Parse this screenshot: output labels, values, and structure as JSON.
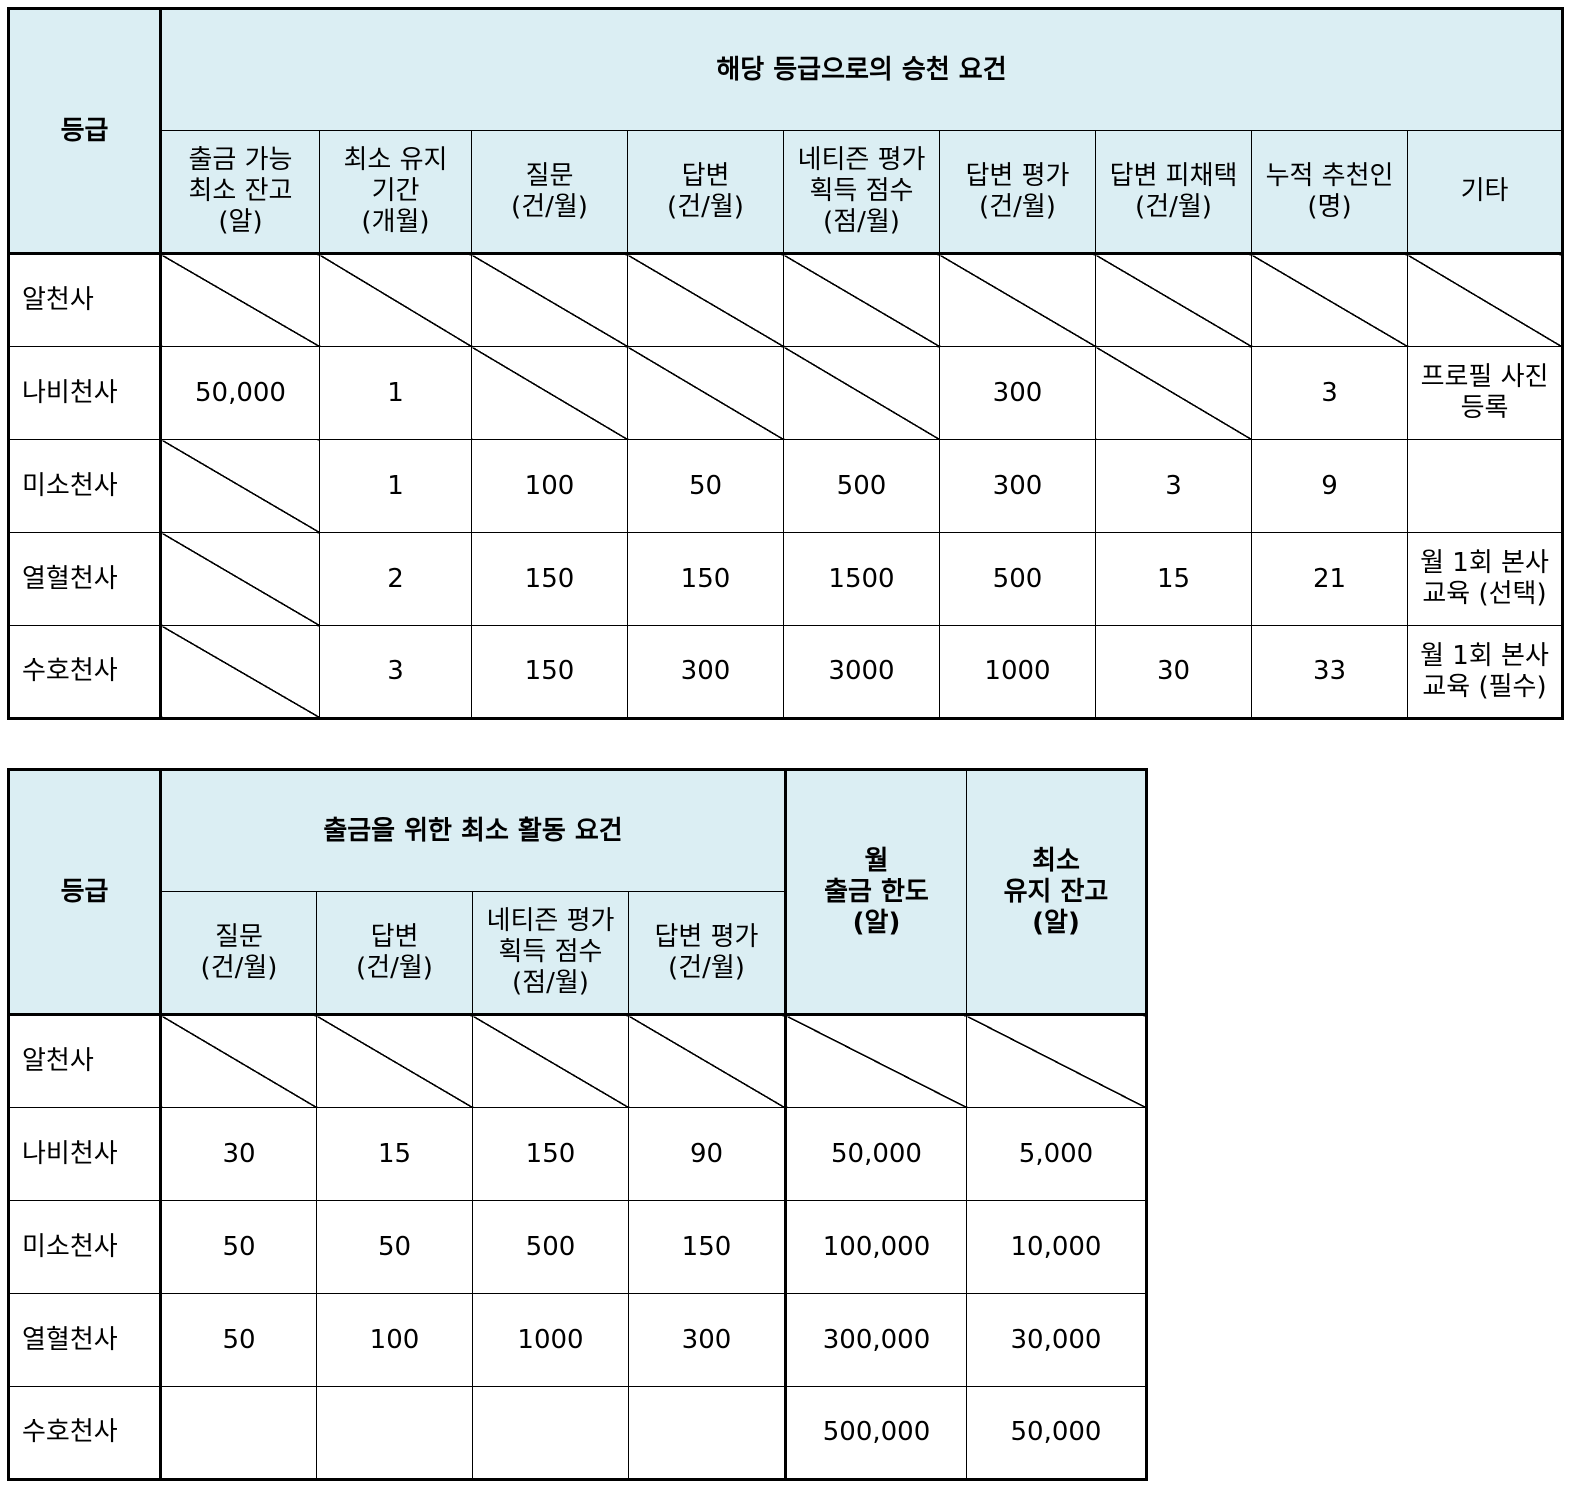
{
  "table1": {
    "grade_header": "등급",
    "group_header": "해당 등급으로의 승천 요건",
    "columns": [
      "출금 가능\n최소 잔고\n(알)",
      "최소 유지\n기간\n(개월)",
      "질문\n(건/월)",
      "답변\n(건/월)",
      "네티즌 평가\n획득 점수\n(점/월)",
      "답변 평가\n(건/월)",
      "답변 피채택\n(건/월)",
      "누적 추천인\n(명)",
      "기타"
    ],
    "rows": [
      {
        "grade": "알천사",
        "cells": [
          "",
          "",
          "",
          "",
          "",
          "",
          "",
          "",
          ""
        ]
      },
      {
        "grade": "나비천사",
        "cells": [
          "50,000",
          "1",
          "",
          "",
          "",
          "300",
          "",
          "3",
          "프로필 사진\n등록"
        ]
      },
      {
        "grade": "미소천사",
        "cells": [
          "",
          "1",
          "100",
          "50",
          "500",
          "300",
          "3",
          "9",
          ""
        ]
      },
      {
        "grade": "열혈천사",
        "cells": [
          "",
          "2",
          "150",
          "150",
          "1500",
          "500",
          "15",
          "21",
          "월 1회 본사\n교육 (선택)"
        ]
      },
      {
        "grade": "수호천사",
        "cells": [
          "",
          "3",
          "150",
          "300",
          "3000",
          "1000",
          "30",
          "33",
          "월 1회 본사\n교육 (필수)"
        ]
      }
    ]
  },
  "table2": {
    "grade_header": "등급",
    "group_header": "출금을 위한 최소 활동 요건",
    "columns": [
      "질문\n(건/월)",
      "답변\n(건/월)",
      "네티즌 평가\n획득 점수\n(점/월)",
      "답변 평가\n(건/월)"
    ],
    "limit_header": "월\n출금 한도\n(알)",
    "balance_header": "최소\n유지 잔고\n(알)",
    "rows": [
      {
        "grade": "알천사",
        "cells": [
          "",
          "",
          "",
          "",
          "",
          ""
        ]
      },
      {
        "grade": "나비천사",
        "cells": [
          "30",
          "15",
          "150",
          "90",
          "50,000",
          "5,000"
        ]
      },
      {
        "grade": "미소천사",
        "cells": [
          "50",
          "50",
          "500",
          "150",
          "100,000",
          "10,000"
        ]
      },
      {
        "grade": "열혈천사",
        "cells": [
          "50",
          "100",
          "1000",
          "300",
          "300,000",
          "30,000"
        ]
      },
      {
        "grade": "수호천사",
        "cells": [
          "",
          "",
          "",
          "",
          "500,000",
          "50,000"
        ]
      }
    ]
  }
}
